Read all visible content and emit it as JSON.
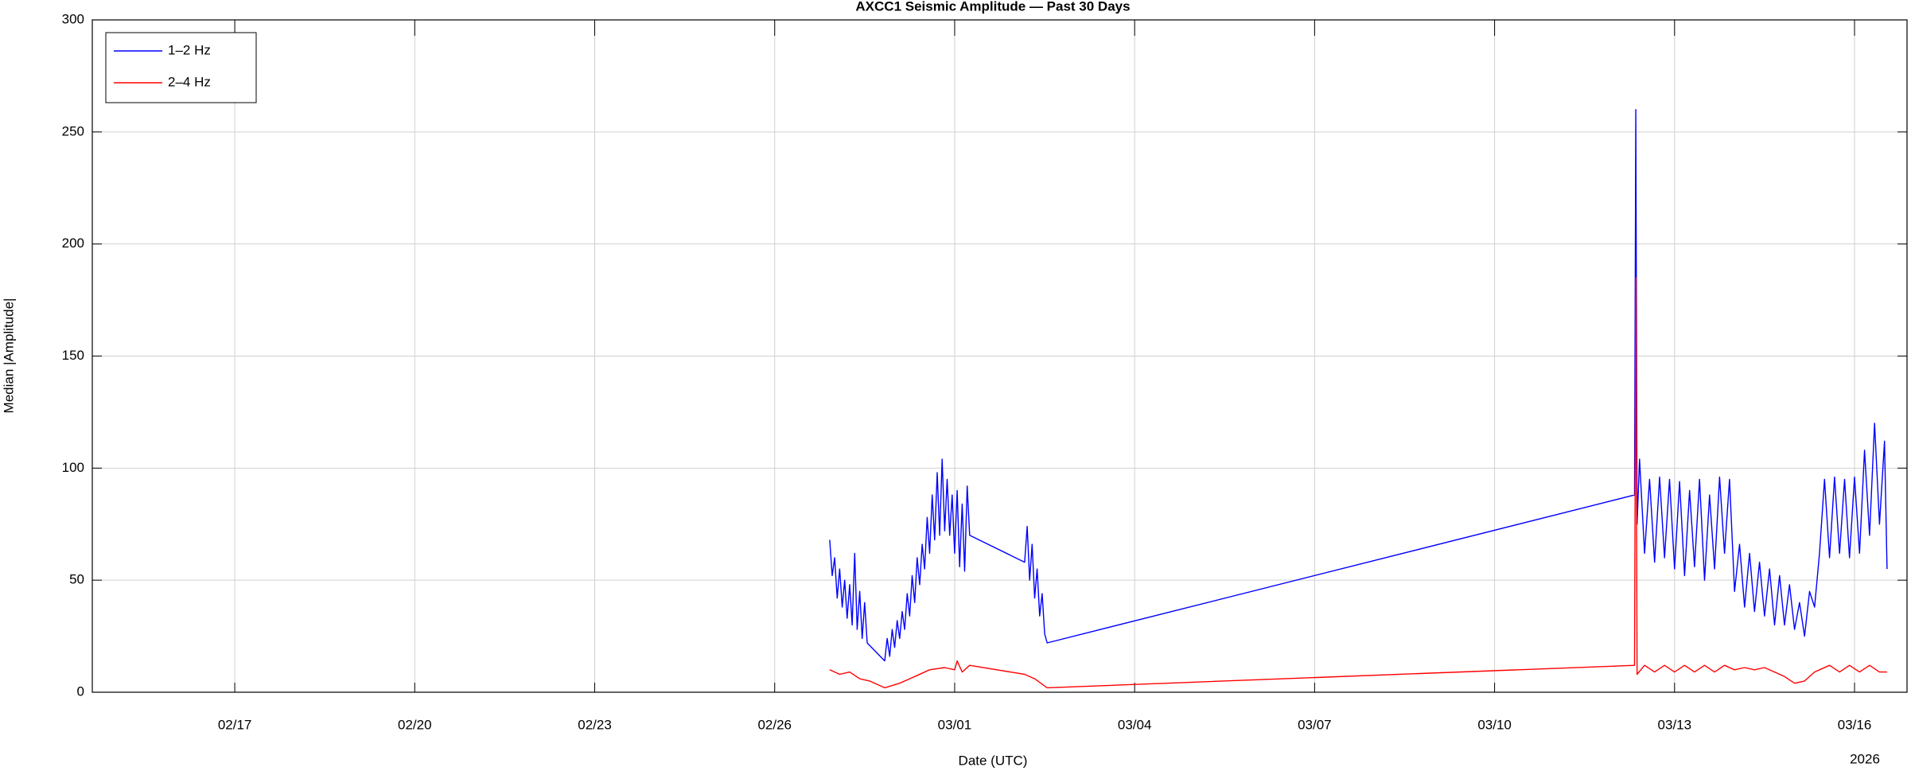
{
  "chart_data": {
    "type": "line",
    "title": "AXCC1 Seismic Amplitude — Past 30 Days",
    "x_label": "Date (UTC)",
    "y_label": "Median |Amplitude|",
    "x_year": "2026",
    "xlim": [
      "2026-02-14T15:00",
      "2026-03-16T21:00"
    ],
    "xticks": [
      {
        "value": "2026-02-17T00:00",
        "label": "02/17"
      },
      {
        "value": "2026-02-20T00:00",
        "label": "02/20"
      },
      {
        "value": "2026-02-23T00:00",
        "label": "02/23"
      },
      {
        "value": "2026-02-26T00:00",
        "label": "02/26"
      },
      {
        "value": "2026-03-01T00:00",
        "label": "03/01"
      },
      {
        "value": "2026-03-04T00:00",
        "label": "03/04"
      },
      {
        "value": "2026-03-07T00:00",
        "label": "03/07"
      },
      {
        "value": "2026-03-10T00:00",
        "label": "03/10"
      },
      {
        "value": "2026-03-13T00:00",
        "label": "03/13"
      },
      {
        "value": "2026-03-16T00:00",
        "label": "03/16"
      }
    ],
    "ylim": [
      0,
      300
    ],
    "yticks": [
      0,
      50,
      100,
      150,
      200,
      250,
      300
    ],
    "grid": true,
    "legend": "upper-left",
    "series": [
      {
        "name": "1–2 Hz",
        "color": "#0000ff",
        "x": [
          "2026-02-26T22:00",
          "2026-02-26T23:00",
          "2026-02-27T00:00",
          "2026-02-27T01:00",
          "2026-02-27T02:00",
          "2026-02-27T03:00",
          "2026-02-27T04:00",
          "2026-02-27T05:00",
          "2026-02-27T06:00",
          "2026-02-27T07:00",
          "2026-02-27T08:00",
          "2026-02-27T09:00",
          "2026-02-27T10:00",
          "2026-02-27T11:00",
          "2026-02-27T12:00",
          "2026-02-27T13:00",
          "2026-02-27T20:00",
          "2026-02-27T21:00",
          "2026-02-27T22:00",
          "2026-02-27T23:00",
          "2026-02-28T00:00",
          "2026-02-28T01:00",
          "2026-02-28T02:00",
          "2026-02-28T03:00",
          "2026-02-28T04:00",
          "2026-02-28T05:00",
          "2026-02-28T06:00",
          "2026-02-28T07:00",
          "2026-02-28T08:00",
          "2026-02-28T09:00",
          "2026-02-28T10:00",
          "2026-02-28T11:00",
          "2026-02-28T12:00",
          "2026-02-28T13:00",
          "2026-02-28T14:00",
          "2026-02-28T15:00",
          "2026-02-28T16:00",
          "2026-02-28T17:00",
          "2026-02-28T18:00",
          "2026-02-28T19:00",
          "2026-02-28T20:00",
          "2026-02-28T21:00",
          "2026-02-28T22:00",
          "2026-02-28T23:00",
          "2026-03-01T00:00",
          "2026-03-01T01:00",
          "2026-03-01T02:00",
          "2026-03-01T03:00",
          "2026-03-01T04:00",
          "2026-03-01T05:00",
          "2026-03-01T06:00",
          "2026-03-02T04:00",
          "2026-03-02T05:00",
          "2026-03-02T06:00",
          "2026-03-02T07:00",
          "2026-03-02T08:00",
          "2026-03-02T09:00",
          "2026-03-02T10:00",
          "2026-03-02T11:00",
          "2026-03-02T12:00",
          "2026-03-02T13:00",
          "2026-03-12T08:00",
          "2026-03-12T08:30",
          "2026-03-12T09:00",
          "2026-03-12T10:00",
          "2026-03-12T12:00",
          "2026-03-12T14:00",
          "2026-03-12T16:00",
          "2026-03-12T18:00",
          "2026-03-12T20:00",
          "2026-03-12T22:00",
          "2026-03-13T00:00",
          "2026-03-13T02:00",
          "2026-03-13T04:00",
          "2026-03-13T06:00",
          "2026-03-13T08:00",
          "2026-03-13T10:00",
          "2026-03-13T12:00",
          "2026-03-13T14:00",
          "2026-03-13T16:00",
          "2026-03-13T18:00",
          "2026-03-13T20:00",
          "2026-03-13T22:00",
          "2026-03-14T00:00",
          "2026-03-14T02:00",
          "2026-03-14T04:00",
          "2026-03-14T06:00",
          "2026-03-14T08:00",
          "2026-03-14T10:00",
          "2026-03-14T12:00",
          "2026-03-14T14:00",
          "2026-03-14T16:00",
          "2026-03-14T18:00",
          "2026-03-14T20:00",
          "2026-03-14T22:00",
          "2026-03-15T00:00",
          "2026-03-15T02:00",
          "2026-03-15T04:00",
          "2026-03-15T06:00",
          "2026-03-15T08:00",
          "2026-03-15T10:00",
          "2026-03-15T12:00",
          "2026-03-15T14:00",
          "2026-03-15T16:00",
          "2026-03-15T18:00",
          "2026-03-15T20:00",
          "2026-03-15T22:00",
          "2026-03-16T00:00",
          "2026-03-16T02:00",
          "2026-03-16T04:00",
          "2026-03-16T06:00",
          "2026-03-16T08:00",
          "2026-03-16T10:00",
          "2026-03-16T12:00",
          "2026-03-16T13:00"
        ],
        "values": [
          68,
          52,
          60,
          42,
          55,
          38,
          50,
          33,
          48,
          30,
          62,
          28,
          45,
          24,
          40,
          22,
          14,
          24,
          16,
          28,
          20,
          32,
          24,
          36,
          28,
          44,
          34,
          52,
          40,
          60,
          48,
          66,
          55,
          78,
          62,
          88,
          68,
          98,
          70,
          104,
          72,
          95,
          70,
          88,
          62,
          90,
          56,
          84,
          54,
          92,
          70,
          58,
          74,
          50,
          66,
          42,
          55,
          34,
          44,
          26,
          22,
          88,
          260,
          75,
          104,
          62,
          95,
          58,
          96,
          60,
          95,
          55,
          94,
          52,
          90,
          56,
          95,
          50,
          88,
          55,
          96,
          62,
          95,
          45,
          66,
          38,
          62,
          36,
          58,
          34,
          55,
          30,
          52,
          30,
          48,
          28,
          40,
          25,
          45,
          38,
          62,
          95,
          60,
          96,
          62,
          95,
          60,
          96,
          62,
          108,
          70,
          120,
          75,
          112,
          55
        ]
      },
      {
        "name": "2–4 Hz",
        "color": "#ff0000",
        "x": [
          "2026-02-26T22:00",
          "2026-02-27T02:00",
          "2026-02-27T06:00",
          "2026-02-27T10:00",
          "2026-02-27T14:00",
          "2026-02-27T20:00",
          "2026-02-28T02:00",
          "2026-02-28T08:00",
          "2026-02-28T14:00",
          "2026-02-28T20:00",
          "2026-03-01T00:00",
          "2026-03-01T01:00",
          "2026-03-01T03:00",
          "2026-03-01T06:00",
          "2026-03-02T04:00",
          "2026-03-02T08:00",
          "2026-03-02T13:00",
          "2026-03-12T08:00",
          "2026-03-12T08:30",
          "2026-03-12T09:00",
          "2026-03-12T12:00",
          "2026-03-12T16:00",
          "2026-03-12T20:00",
          "2026-03-13T00:00",
          "2026-03-13T04:00",
          "2026-03-13T08:00",
          "2026-03-13T12:00",
          "2026-03-13T16:00",
          "2026-03-13T20:00",
          "2026-03-14T00:00",
          "2026-03-14T04:00",
          "2026-03-14T08:00",
          "2026-03-14T12:00",
          "2026-03-14T16:00",
          "2026-03-14T20:00",
          "2026-03-15T00:00",
          "2026-03-15T04:00",
          "2026-03-15T08:00",
          "2026-03-15T10:00",
          "2026-03-15T14:00",
          "2026-03-15T18:00",
          "2026-03-15T22:00",
          "2026-03-16T02:00",
          "2026-03-16T06:00",
          "2026-03-16T10:00",
          "2026-03-16T13:00"
        ],
        "values": [
          10,
          8,
          9,
          6,
          5,
          2,
          4,
          7,
          10,
          11,
          10,
          14,
          9,
          12,
          8,
          6,
          2,
          12,
          185,
          8,
          12,
          9,
          12,
          9,
          12,
          9,
          12,
          9,
          12,
          10,
          11,
          10,
          11,
          9,
          7,
          4,
          5,
          9,
          10,
          12,
          9,
          12,
          9,
          12,
          9,
          9
        ]
      }
    ]
  }
}
